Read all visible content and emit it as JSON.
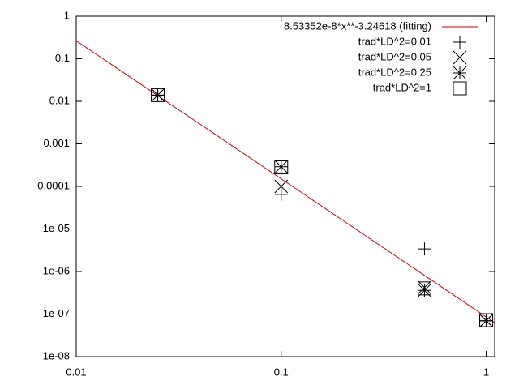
{
  "chart_data": {
    "type": "scatter",
    "xlog": true,
    "ylog": true,
    "xlim": [
      0.01,
      1.1
    ],
    "ylim": [
      1e-08,
      1
    ],
    "xticks": [
      0.01,
      0.1,
      1
    ],
    "yticks": [
      1,
      0.1,
      0.01,
      0.001,
      0.0001,
      {
        "value": 1e-05,
        "label": "1e-05"
      },
      {
        "value": 1e-06,
        "label": "1e-06"
      },
      {
        "value": 1e-07,
        "label": "1e-07"
      },
      {
        "value": 1e-08,
        "label": "1e-08"
      }
    ],
    "legend": "top-right",
    "series": [
      {
        "name": "8.53352e-8*x**-3.24618 (fitting)",
        "color": "#cc0000",
        "style": "line",
        "x": [
          0.01,
          1.1
        ],
        "values": [
          0.265,
          6.27e-08
        ]
      },
      {
        "name": "trad*LD^2=0.01",
        "color": "#000000",
        "marker": "plus",
        "x": [
          0.025,
          0.1,
          0.5,
          1
        ],
        "values": [
          0.014,
          6.5e-05,
          3.4e-06,
          6.9e-08
        ]
      },
      {
        "name": "trad*LD^2=0.05",
        "color": "#000000",
        "marker": "cross",
        "x": [
          0.025,
          0.1,
          0.5,
          1
        ],
        "values": [
          0.014,
          0.0001,
          4.2e-07,
          7e-08
        ]
      },
      {
        "name": "trad*LD^2=0.25",
        "color": "#000000",
        "marker": "star",
        "x": [
          0.025,
          0.1,
          0.5,
          1
        ],
        "values": [
          0.014,
          0.00029,
          3.6e-07,
          7e-08
        ]
      },
      {
        "name": "trad*LD^2=1",
        "color": "#000000",
        "marker": "square",
        "x": [
          0.025,
          0.1,
          0.5,
          1
        ],
        "values": [
          0.014,
          0.00028,
          4e-07,
          7.2e-08
        ]
      }
    ]
  }
}
